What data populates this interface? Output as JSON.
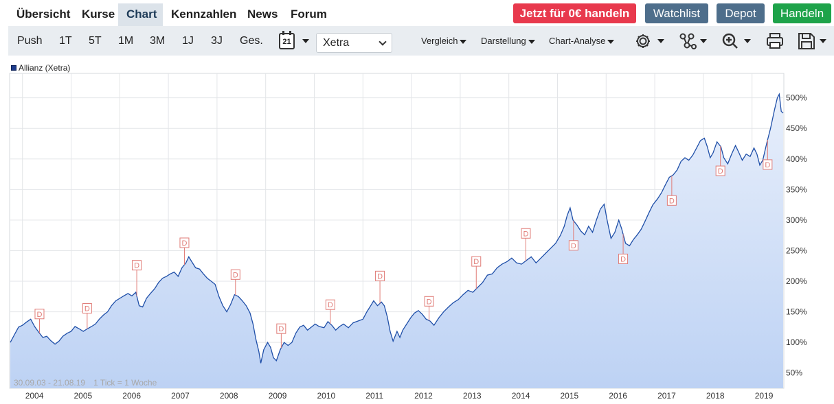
{
  "nav": {
    "tabs": [
      "Übersicht",
      "Kurse",
      "Chart",
      "Kennzahlen",
      "News",
      "Forum"
    ],
    "active_tab": "Chart"
  },
  "header_buttons": {
    "trade": "Jetzt für 0€ handeln",
    "watchlist": "Watchlist",
    "depot": "Depot",
    "handeln": "Handeln"
  },
  "toolbar": {
    "ranges": [
      "Push",
      "1T",
      "5T",
      "1M",
      "3M",
      "1J",
      "3J",
      "Ges."
    ],
    "calendar_day": "21",
    "exchange": "Xetra",
    "vergleich": "Vergleich",
    "darstellung": "Darstellung",
    "analyse": "Chart-Analyse",
    "icons": [
      "settings-icon",
      "share-icon",
      "zoom-icon",
      "print-icon",
      "save-icon"
    ]
  },
  "colors": {
    "line": "#1f4fa8",
    "fill_top": "#e8effb",
    "fill_bottom": "#bdd2f4",
    "dividend": "#e07b76",
    "trade_button": "#e8394d",
    "secondary_button": "#4e6e8b",
    "handeln_button": "#1ea34a"
  },
  "chart_data": {
    "type": "area",
    "legend": "Allianz (Xetra)",
    "period": "30.09.03 - 21.08.19",
    "tick_info": "1 Tick = 1 Woche",
    "x_range": [
      2003.75,
      2019.64
    ],
    "y_range": [
      25,
      540
    ],
    "grid": true,
    "y_axis_position": "right",
    "y_ticks": [
      50,
      100,
      150,
      200,
      250,
      300,
      350,
      400,
      450,
      500
    ],
    "y_tick_labels": [
      "50%",
      "100%",
      "150%",
      "200%",
      "250%",
      "300%",
      "350%",
      "400%",
      "450%",
      "500%"
    ],
    "x_ticks": [
      2004,
      2005,
      2006,
      2007,
      2008,
      2009,
      2010,
      2011,
      2012,
      2013,
      2014,
      2015,
      2016,
      2017,
      2018,
      2019
    ],
    "x_tick_labels": [
      "2004",
      "2005",
      "2006",
      "2007",
      "2008",
      "2009",
      "2010",
      "2011",
      "2012",
      "2013",
      "2014",
      "2015",
      "2016",
      "2017",
      "2018",
      "2019"
    ],
    "series": [
      {
        "points": [
          [
            2003.75,
            100
          ],
          [
            2003.83,
            112
          ],
          [
            2003.92,
            125
          ],
          [
            2004.0,
            128
          ],
          [
            2004.08,
            133
          ],
          [
            2004.17,
            138
          ],
          [
            2004.25,
            126
          ],
          [
            2004.33,
            117
          ],
          [
            2004.42,
            108
          ],
          [
            2004.5,
            110
          ],
          [
            2004.58,
            103
          ],
          [
            2004.67,
            97
          ],
          [
            2004.75,
            102
          ],
          [
            2004.83,
            110
          ],
          [
            2004.92,
            115
          ],
          [
            2005.0,
            118
          ],
          [
            2005.08,
            126
          ],
          [
            2005.17,
            122
          ],
          [
            2005.25,
            118
          ],
          [
            2005.33,
            122
          ],
          [
            2005.42,
            126
          ],
          [
            2005.5,
            130
          ],
          [
            2005.58,
            138
          ],
          [
            2005.67,
            145
          ],
          [
            2005.75,
            150
          ],
          [
            2005.83,
            160
          ],
          [
            2005.92,
            168
          ],
          [
            2006.0,
            172
          ],
          [
            2006.08,
            176
          ],
          [
            2006.17,
            180
          ],
          [
            2006.25,
            176
          ],
          [
            2006.33,
            182
          ],
          [
            2006.4,
            160
          ],
          [
            2006.47,
            158
          ],
          [
            2006.55,
            172
          ],
          [
            2006.63,
            180
          ],
          [
            2006.72,
            188
          ],
          [
            2006.8,
            198
          ],
          [
            2006.88,
            205
          ],
          [
            2006.96,
            208
          ],
          [
            2007.04,
            212
          ],
          [
            2007.12,
            215
          ],
          [
            2007.2,
            208
          ],
          [
            2007.28,
            222
          ],
          [
            2007.36,
            230
          ],
          [
            2007.42,
            240
          ],
          [
            2007.48,
            232
          ],
          [
            2007.56,
            222
          ],
          [
            2007.64,
            220
          ],
          [
            2007.72,
            212
          ],
          [
            2007.8,
            205
          ],
          [
            2007.88,
            200
          ],
          [
            2007.96,
            195
          ],
          [
            2008.04,
            175
          ],
          [
            2008.12,
            160
          ],
          [
            2008.2,
            150
          ],
          [
            2008.28,
            162
          ],
          [
            2008.36,
            178
          ],
          [
            2008.44,
            175
          ],
          [
            2008.52,
            168
          ],
          [
            2008.6,
            160
          ],
          [
            2008.68,
            148
          ],
          [
            2008.74,
            130
          ],
          [
            2008.8,
            105
          ],
          [
            2008.86,
            85
          ],
          [
            2008.9,
            66
          ],
          [
            2008.96,
            88
          ],
          [
            2009.04,
            100
          ],
          [
            2009.1,
            92
          ],
          [
            2009.16,
            75
          ],
          [
            2009.22,
            70
          ],
          [
            2009.3,
            88
          ],
          [
            2009.38,
            100
          ],
          [
            2009.46,
            95
          ],
          [
            2009.54,
            100
          ],
          [
            2009.62,
            115
          ],
          [
            2009.7,
            125
          ],
          [
            2009.78,
            128
          ],
          [
            2009.86,
            120
          ],
          [
            2009.94,
            125
          ],
          [
            2010.02,
            130
          ],
          [
            2010.1,
            126
          ],
          [
            2010.2,
            124
          ],
          [
            2010.28,
            134
          ],
          [
            2010.36,
            128
          ],
          [
            2010.44,
            120
          ],
          [
            2010.52,
            126
          ],
          [
            2010.6,
            130
          ],
          [
            2010.7,
            124
          ],
          [
            2010.8,
            132
          ],
          [
            2010.9,
            135
          ],
          [
            2011.0,
            138
          ],
          [
            2011.08,
            150
          ],
          [
            2011.16,
            160
          ],
          [
            2011.22,
            168
          ],
          [
            2011.3,
            160
          ],
          [
            2011.38,
            166
          ],
          [
            2011.44,
            160
          ],
          [
            2011.5,
            142
          ],
          [
            2011.56,
            118
          ],
          [
            2011.62,
            102
          ],
          [
            2011.7,
            118
          ],
          [
            2011.76,
            108
          ],
          [
            2011.82,
            120
          ],
          [
            2011.9,
            130
          ],
          [
            2011.98,
            140
          ],
          [
            2012.06,
            148
          ],
          [
            2012.14,
            152
          ],
          [
            2012.22,
            146
          ],
          [
            2012.3,
            138
          ],
          [
            2012.38,
            135
          ],
          [
            2012.46,
            128
          ],
          [
            2012.56,
            140
          ],
          [
            2012.66,
            150
          ],
          [
            2012.76,
            158
          ],
          [
            2012.86,
            165
          ],
          [
            2012.96,
            170
          ],
          [
            2013.06,
            178
          ],
          [
            2013.16,
            185
          ],
          [
            2013.26,
            182
          ],
          [
            2013.36,
            190
          ],
          [
            2013.46,
            198
          ],
          [
            2013.56,
            210
          ],
          [
            2013.66,
            212
          ],
          [
            2013.76,
            222
          ],
          [
            2013.86,
            228
          ],
          [
            2013.96,
            232
          ],
          [
            2014.06,
            238
          ],
          [
            2014.16,
            230
          ],
          [
            2014.26,
            228
          ],
          [
            2014.36,
            234
          ],
          [
            2014.46,
            240
          ],
          [
            2014.56,
            230
          ],
          [
            2014.66,
            238
          ],
          [
            2014.76,
            246
          ],
          [
            2014.86,
            254
          ],
          [
            2014.96,
            262
          ],
          [
            2015.06,
            275
          ],
          [
            2015.14,
            290
          ],
          [
            2015.2,
            308
          ],
          [
            2015.26,
            320
          ],
          [
            2015.32,
            300
          ],
          [
            2015.4,
            292
          ],
          [
            2015.48,
            282
          ],
          [
            2015.56,
            276
          ],
          [
            2015.64,
            290
          ],
          [
            2015.72,
            280
          ],
          [
            2015.8,
            300
          ],
          [
            2015.88,
            318
          ],
          [
            2015.96,
            326
          ],
          [
            2016.02,
            300
          ],
          [
            2016.1,
            270
          ],
          [
            2016.18,
            280
          ],
          [
            2016.26,
            300
          ],
          [
            2016.32,
            286
          ],
          [
            2016.4,
            262
          ],
          [
            2016.48,
            258
          ],
          [
            2016.56,
            268
          ],
          [
            2016.64,
            276
          ],
          [
            2016.72,
            285
          ],
          [
            2016.8,
            298
          ],
          [
            2016.88,
            312
          ],
          [
            2016.96,
            325
          ],
          [
            2017.06,
            335
          ],
          [
            2017.14,
            345
          ],
          [
            2017.22,
            358
          ],
          [
            2017.3,
            370
          ],
          [
            2017.38,
            374
          ],
          [
            2017.46,
            382
          ],
          [
            2017.54,
            396
          ],
          [
            2017.62,
            402
          ],
          [
            2017.7,
            398
          ],
          [
            2017.78,
            406
          ],
          [
            2017.86,
            418
          ],
          [
            2017.94,
            430
          ],
          [
            2018.02,
            434
          ],
          [
            2018.08,
            420
          ],
          [
            2018.14,
            402
          ],
          [
            2018.2,
            410
          ],
          [
            2018.28,
            428
          ],
          [
            2018.36,
            420
          ],
          [
            2018.42,
            402
          ],
          [
            2018.5,
            392
          ],
          [
            2018.58,
            408
          ],
          [
            2018.66,
            422
          ],
          [
            2018.72,
            412
          ],
          [
            2018.8,
            398
          ],
          [
            2018.88,
            408
          ],
          [
            2018.96,
            404
          ],
          [
            2019.04,
            418
          ],
          [
            2019.1,
            408
          ],
          [
            2019.16,
            390
          ],
          [
            2019.22,
            398
          ],
          [
            2019.3,
            425
          ],
          [
            2019.38,
            450
          ],
          [
            2019.46,
            480
          ],
          [
            2019.52,
            500
          ],
          [
            2019.56,
            506
          ],
          [
            2019.6,
            478
          ],
          [
            2019.64,
            475
          ]
        ]
      }
    ],
    "dividends": [
      {
        "x": 2004.35,
        "label": "D",
        "offset": 28
      },
      {
        "x": 2005.33,
        "label": "D",
        "offset": 30
      },
      {
        "x": 2006.35,
        "label": "D",
        "offset": 45
      },
      {
        "x": 2007.33,
        "label": "D",
        "offset": 32
      },
      {
        "x": 2008.38,
        "label": "D",
        "offset": 30
      },
      {
        "x": 2009.32,
        "label": "D",
        "offset": 28
      },
      {
        "x": 2010.33,
        "label": "D",
        "offset": 28
      },
      {
        "x": 2011.35,
        "label": "D",
        "offset": 40
      },
      {
        "x": 2012.36,
        "label": "D",
        "offset": 28
      },
      {
        "x": 2013.33,
        "label": "D",
        "offset": 40
      },
      {
        "x": 2014.35,
        "label": "D",
        "offset": 40
      },
      {
        "x": 2015.33,
        "label": "D",
        "offset": 36
      },
      {
        "x": 2016.35,
        "label": "D",
        "offset": 36
      },
      {
        "x": 2017.35,
        "label": "D",
        "offset": 36
      },
      {
        "x": 2018.35,
        "label": "D",
        "offset": 36
      },
      {
        "x": 2019.32,
        "label": "D",
        "offset": 36
      }
    ]
  }
}
